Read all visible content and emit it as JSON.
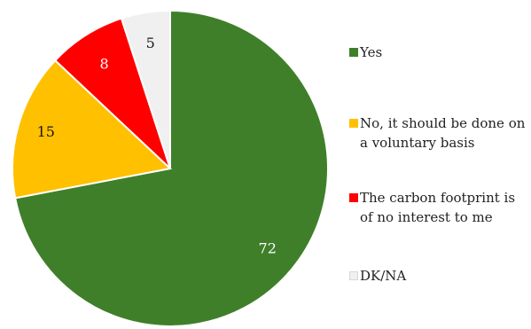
{
  "chart_data": {
    "type": "pie",
    "title": "",
    "slices": [
      {
        "label": "Yes",
        "value": 72,
        "color": "#3f7f2a",
        "label_color": "#ffffff"
      },
      {
        "label": "No, it should be done on a voluntary basis",
        "value": 15,
        "color": "#ffc000",
        "label_color": "#1a1a1a"
      },
      {
        "label": "The carbon footprint is of no interest to me",
        "value": 8,
        "color": "#ff0000",
        "label_color": "#ffffff"
      },
      {
        "label": "DK/NA",
        "value": 5,
        "color": "#f0f0f0",
        "label_color": "#1a1a1a"
      }
    ],
    "legend_position": "right",
    "start_angle_deg": 0,
    "direction": "clockwise"
  }
}
